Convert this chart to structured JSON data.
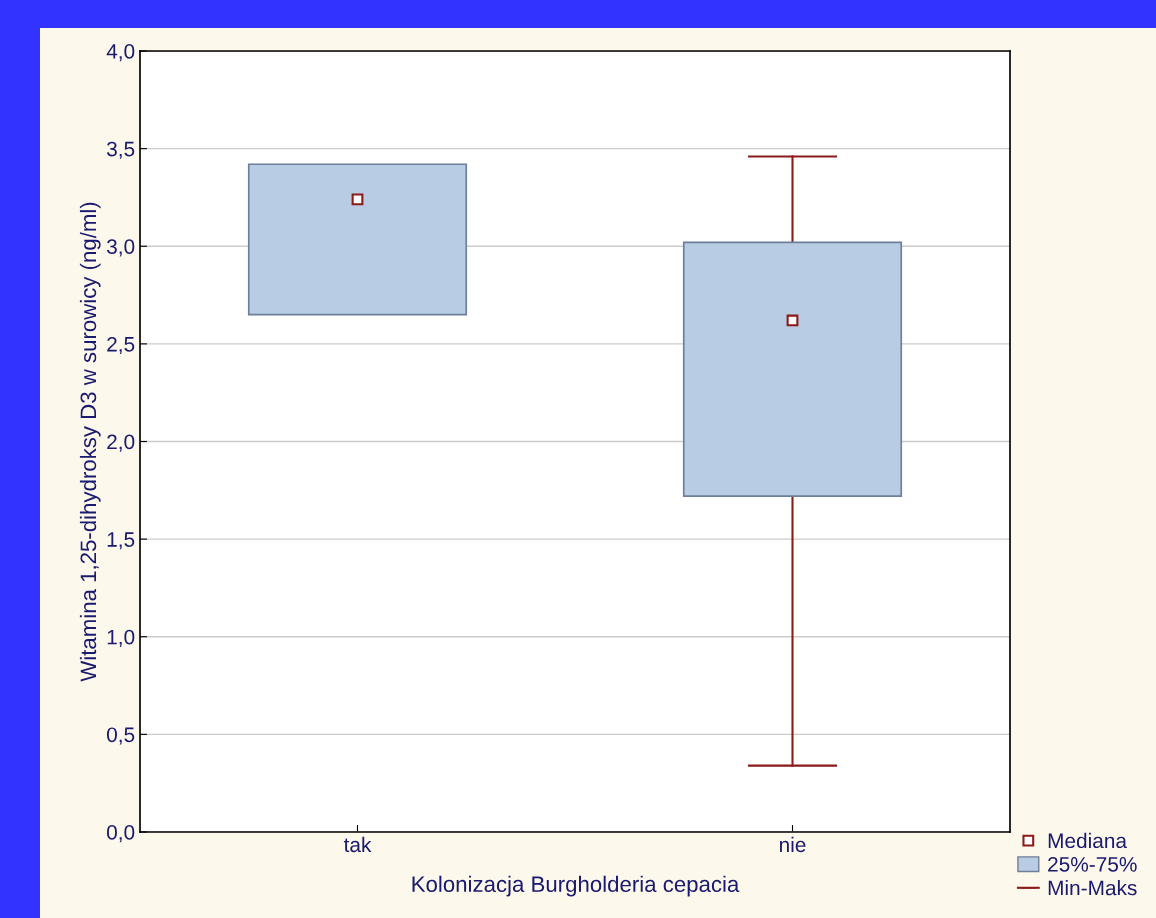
{
  "chart_data": {
    "type": "box",
    "xlabel": "Kolonizacja Burgholderia cepacia",
    "ylabel": "Witamina 1,25-dihydroksy D3 w surowicy (ng/ml)",
    "categories": [
      "tak",
      "nie"
    ],
    "series": [
      {
        "name": "Mediana",
        "type": "scatter",
        "color": "#8b1a1a",
        "values": [
          null,
          null
        ],
        "marker": "square"
      },
      {
        "name": "25%-75%",
        "type": "box",
        "color": "#b8cce4",
        "boxes": [
          {
            "low": 2.65,
            "q1": 2.65,
            "median": 3.24,
            "q3": 3.42,
            "high": 3.42
          },
          {
            "low": 0.34,
            "q1": 1.72,
            "median": 2.62,
            "q3": 3.02,
            "high": 3.46
          }
        ]
      },
      {
        "name": "Min-Maks",
        "type": "scatter",
        "color": "#8b1a1a",
        "marker": "none",
        "values": [
          null,
          null
        ]
      }
    ],
    "ylim": [
      0,
      4
    ],
    "yticks": [
      {
        "value": 0,
        "label": "0,0"
      },
      {
        "value": 0.5,
        "label": "0,5"
      },
      {
        "value": 1,
        "label": "1,0"
      },
      {
        "value": 1.5,
        "label": "1,5"
      },
      {
        "value": 2,
        "label": "2,0"
      },
      {
        "value": 2.5,
        "label": "2,5"
      },
      {
        "value": 3,
        "label": "3,0"
      },
      {
        "value": 3.5,
        "label": "3,5"
      },
      {
        "value": 4,
        "label": "4,0"
      }
    ],
    "grid": "y",
    "legend": "bottom right"
  }
}
